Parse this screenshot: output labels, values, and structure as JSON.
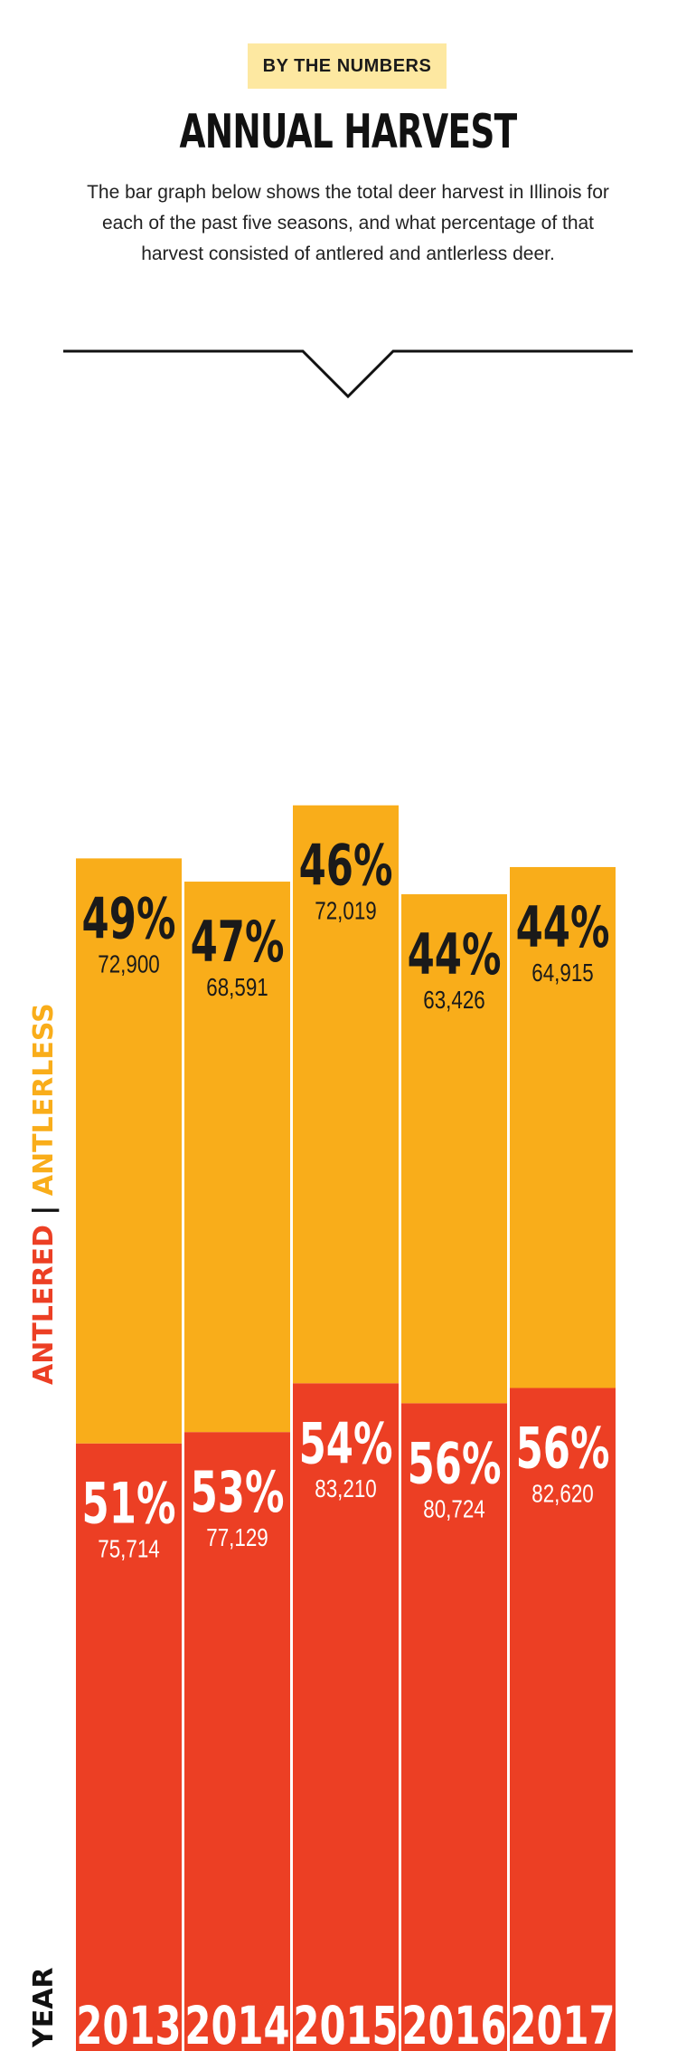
{
  "kicker": "BY THE NUMBERS",
  "title": "ANNUAL HARVEST",
  "description": "The bar graph below shows the total deer harvest in Illinois for each of the past five seasons, and what percentage of that harvest consisted of antlered and antlerless deer.",
  "colors": {
    "antlerless": "#f9ad1a",
    "antlered": "#ec3f24",
    "kicker_bg": "#fde8a1",
    "text_dark": "#1a1a1a",
    "text_light": "#ffffff"
  },
  "chart_data": {
    "type": "bar",
    "stacked": true,
    "categories": [
      "2013",
      "2014",
      "2015",
      "2016",
      "2017"
    ],
    "series": [
      {
        "name": "ANTLERED",
        "values": [
          75714,
          77129,
          83210,
          80724,
          82620
        ],
        "percents": [
          "51%",
          "53%",
          "54%",
          "56%",
          "56%"
        ],
        "labels": [
          "75,714",
          "77,129",
          "83,210",
          "80,724",
          "82,620"
        ]
      },
      {
        "name": "ANTLERLESS",
        "values": [
          72900,
          68591,
          72019,
          63426,
          64915
        ],
        "percents": [
          "49%",
          "47%",
          "46%",
          "44%",
          "44%"
        ],
        "labels": [
          "72,900",
          "68,591",
          "72,019",
          "63,426",
          "64,915"
        ]
      }
    ],
    "xlabel": "YEAR",
    "legend": {
      "antlered": "ANTLERED",
      "separator": "|",
      "antlerless": "ANTLERLESS",
      "position": "left-vertical"
    },
    "grid": false
  }
}
